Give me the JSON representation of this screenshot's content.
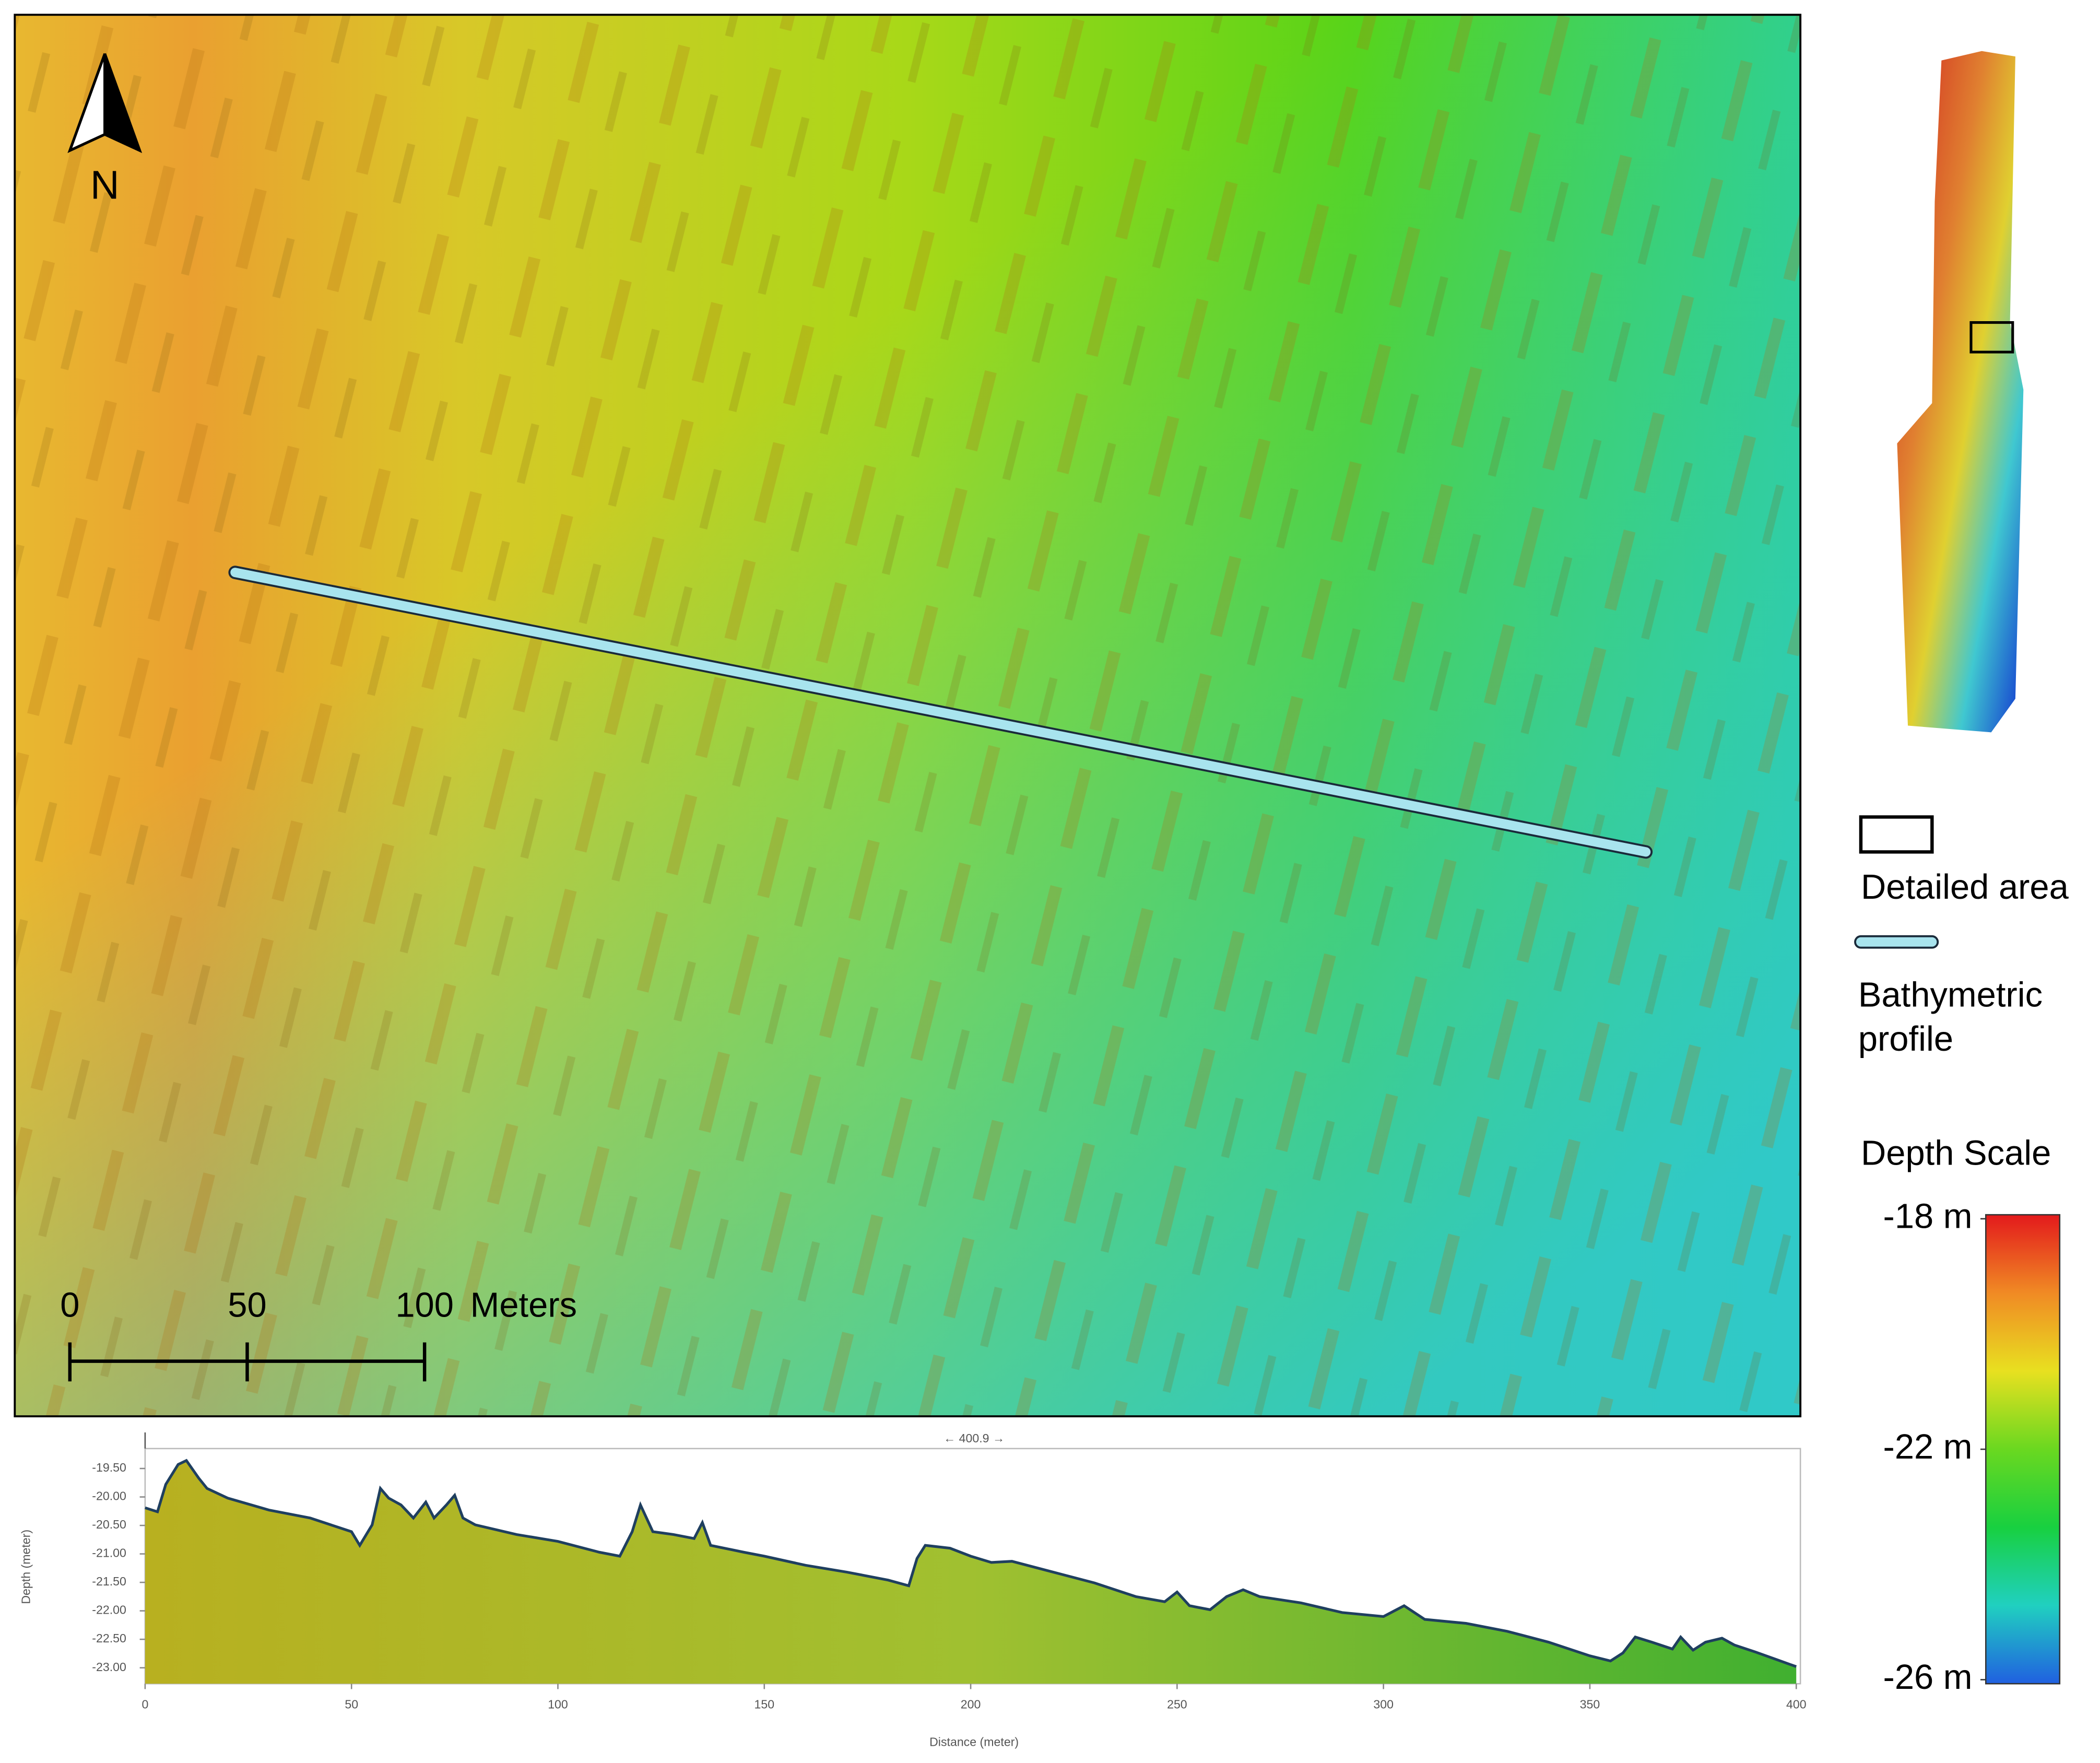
{
  "map": {
    "north_label": "N",
    "scale_bar": {
      "ticks": [
        0,
        50,
        100
      ],
      "unit": "Meters"
    }
  },
  "legend": {
    "items": [
      {
        "label": "Detailed area"
      },
      {
        "label": "Bathymetric profile"
      }
    ]
  },
  "depth_scale": {
    "title": "Depth Scale",
    "lim": [
      -26,
      -18
    ],
    "ticks": [
      {
        "value": -18,
        "label": "-18 m"
      },
      {
        "value": -22,
        "label": "-22 m"
      },
      {
        "value": -26,
        "label": "-26 m"
      }
    ],
    "colors": [
      "#e31a1c",
      "#f08a24",
      "#e8e020",
      "#6ad820",
      "#18d040",
      "#20d0c0",
      "#2060e0"
    ]
  },
  "chart_data": {
    "type": "area",
    "annotation": "← 400.9 →",
    "x_label": "Distance (meter)",
    "y_label": "Depth (meter)",
    "color": "#1f3f5f",
    "x": [
      0,
      3,
      5,
      8,
      10,
      13,
      15,
      20,
      30,
      40,
      50,
      52,
      55,
      57,
      59,
      62,
      65,
      68,
      70,
      73,
      75,
      77,
      80,
      90,
      100,
      110,
      115,
      118,
      120,
      123,
      128,
      133,
      135,
      137,
      145,
      150,
      160,
      170,
      180,
      185,
      187,
      189,
      195,
      200,
      205,
      210,
      220,
      230,
      240,
      247,
      250,
      253,
      258,
      262,
      266,
      270,
      280,
      290,
      300,
      305,
      310,
      320,
      330,
      340,
      350,
      355,
      358,
      361,
      365,
      370,
      372,
      375,
      378,
      382,
      385,
      390,
      400
    ],
    "values": [
      -20.19,
      -20.26,
      -19.78,
      -19.43,
      -19.36,
      -19.67,
      -19.85,
      -20.02,
      -20.23,
      -20.37,
      -20.61,
      -20.85,
      -20.49,
      -19.85,
      -20.02,
      -20.14,
      -20.37,
      -20.09,
      -20.37,
      -20.14,
      -19.97,
      -20.37,
      -20.49,
      -20.66,
      -20.78,
      -20.97,
      -21.04,
      -20.61,
      -20.14,
      -20.61,
      -20.66,
      -20.73,
      -20.45,
      -20.85,
      -20.97,
      -21.04,
      -21.2,
      -21.32,
      -21.46,
      -21.56,
      -21.08,
      -20.85,
      -20.9,
      -21.04,
      -21.15,
      -21.13,
      -21.32,
      -21.51,
      -21.75,
      -21.84,
      -21.67,
      -21.91,
      -21.98,
      -21.75,
      -21.63,
      -21.75,
      -21.86,
      -22.03,
      -22.1,
      -21.91,
      -22.15,
      -22.22,
      -22.36,
      -22.55,
      -22.79,
      -22.88,
      -22.74,
      -22.46,
      -22.55,
      -22.67,
      -22.46,
      -22.69,
      -22.55,
      -22.48,
      -22.6,
      -22.72,
      -22.98
    ],
    "xlim": [
      0,
      401
    ],
    "ylim": [
      -23.28,
      -19.15
    ],
    "xticks": [
      0,
      50,
      100,
      150,
      200,
      250,
      300,
      350,
      400
    ],
    "yticks": [
      {
        "value": -19.5,
        "label": "-19.50"
      },
      {
        "value": -20,
        "label": "-20.00"
      },
      {
        "value": -20.5,
        "label": "-20.50"
      },
      {
        "value": -21,
        "label": "-21.00"
      },
      {
        "value": -21.5,
        "label": "-21.50"
      },
      {
        "value": -22,
        "label": "-22.00"
      },
      {
        "value": -22.5,
        "label": "-22.50"
      },
      {
        "value": -23,
        "label": "-23.00"
      }
    ]
  }
}
